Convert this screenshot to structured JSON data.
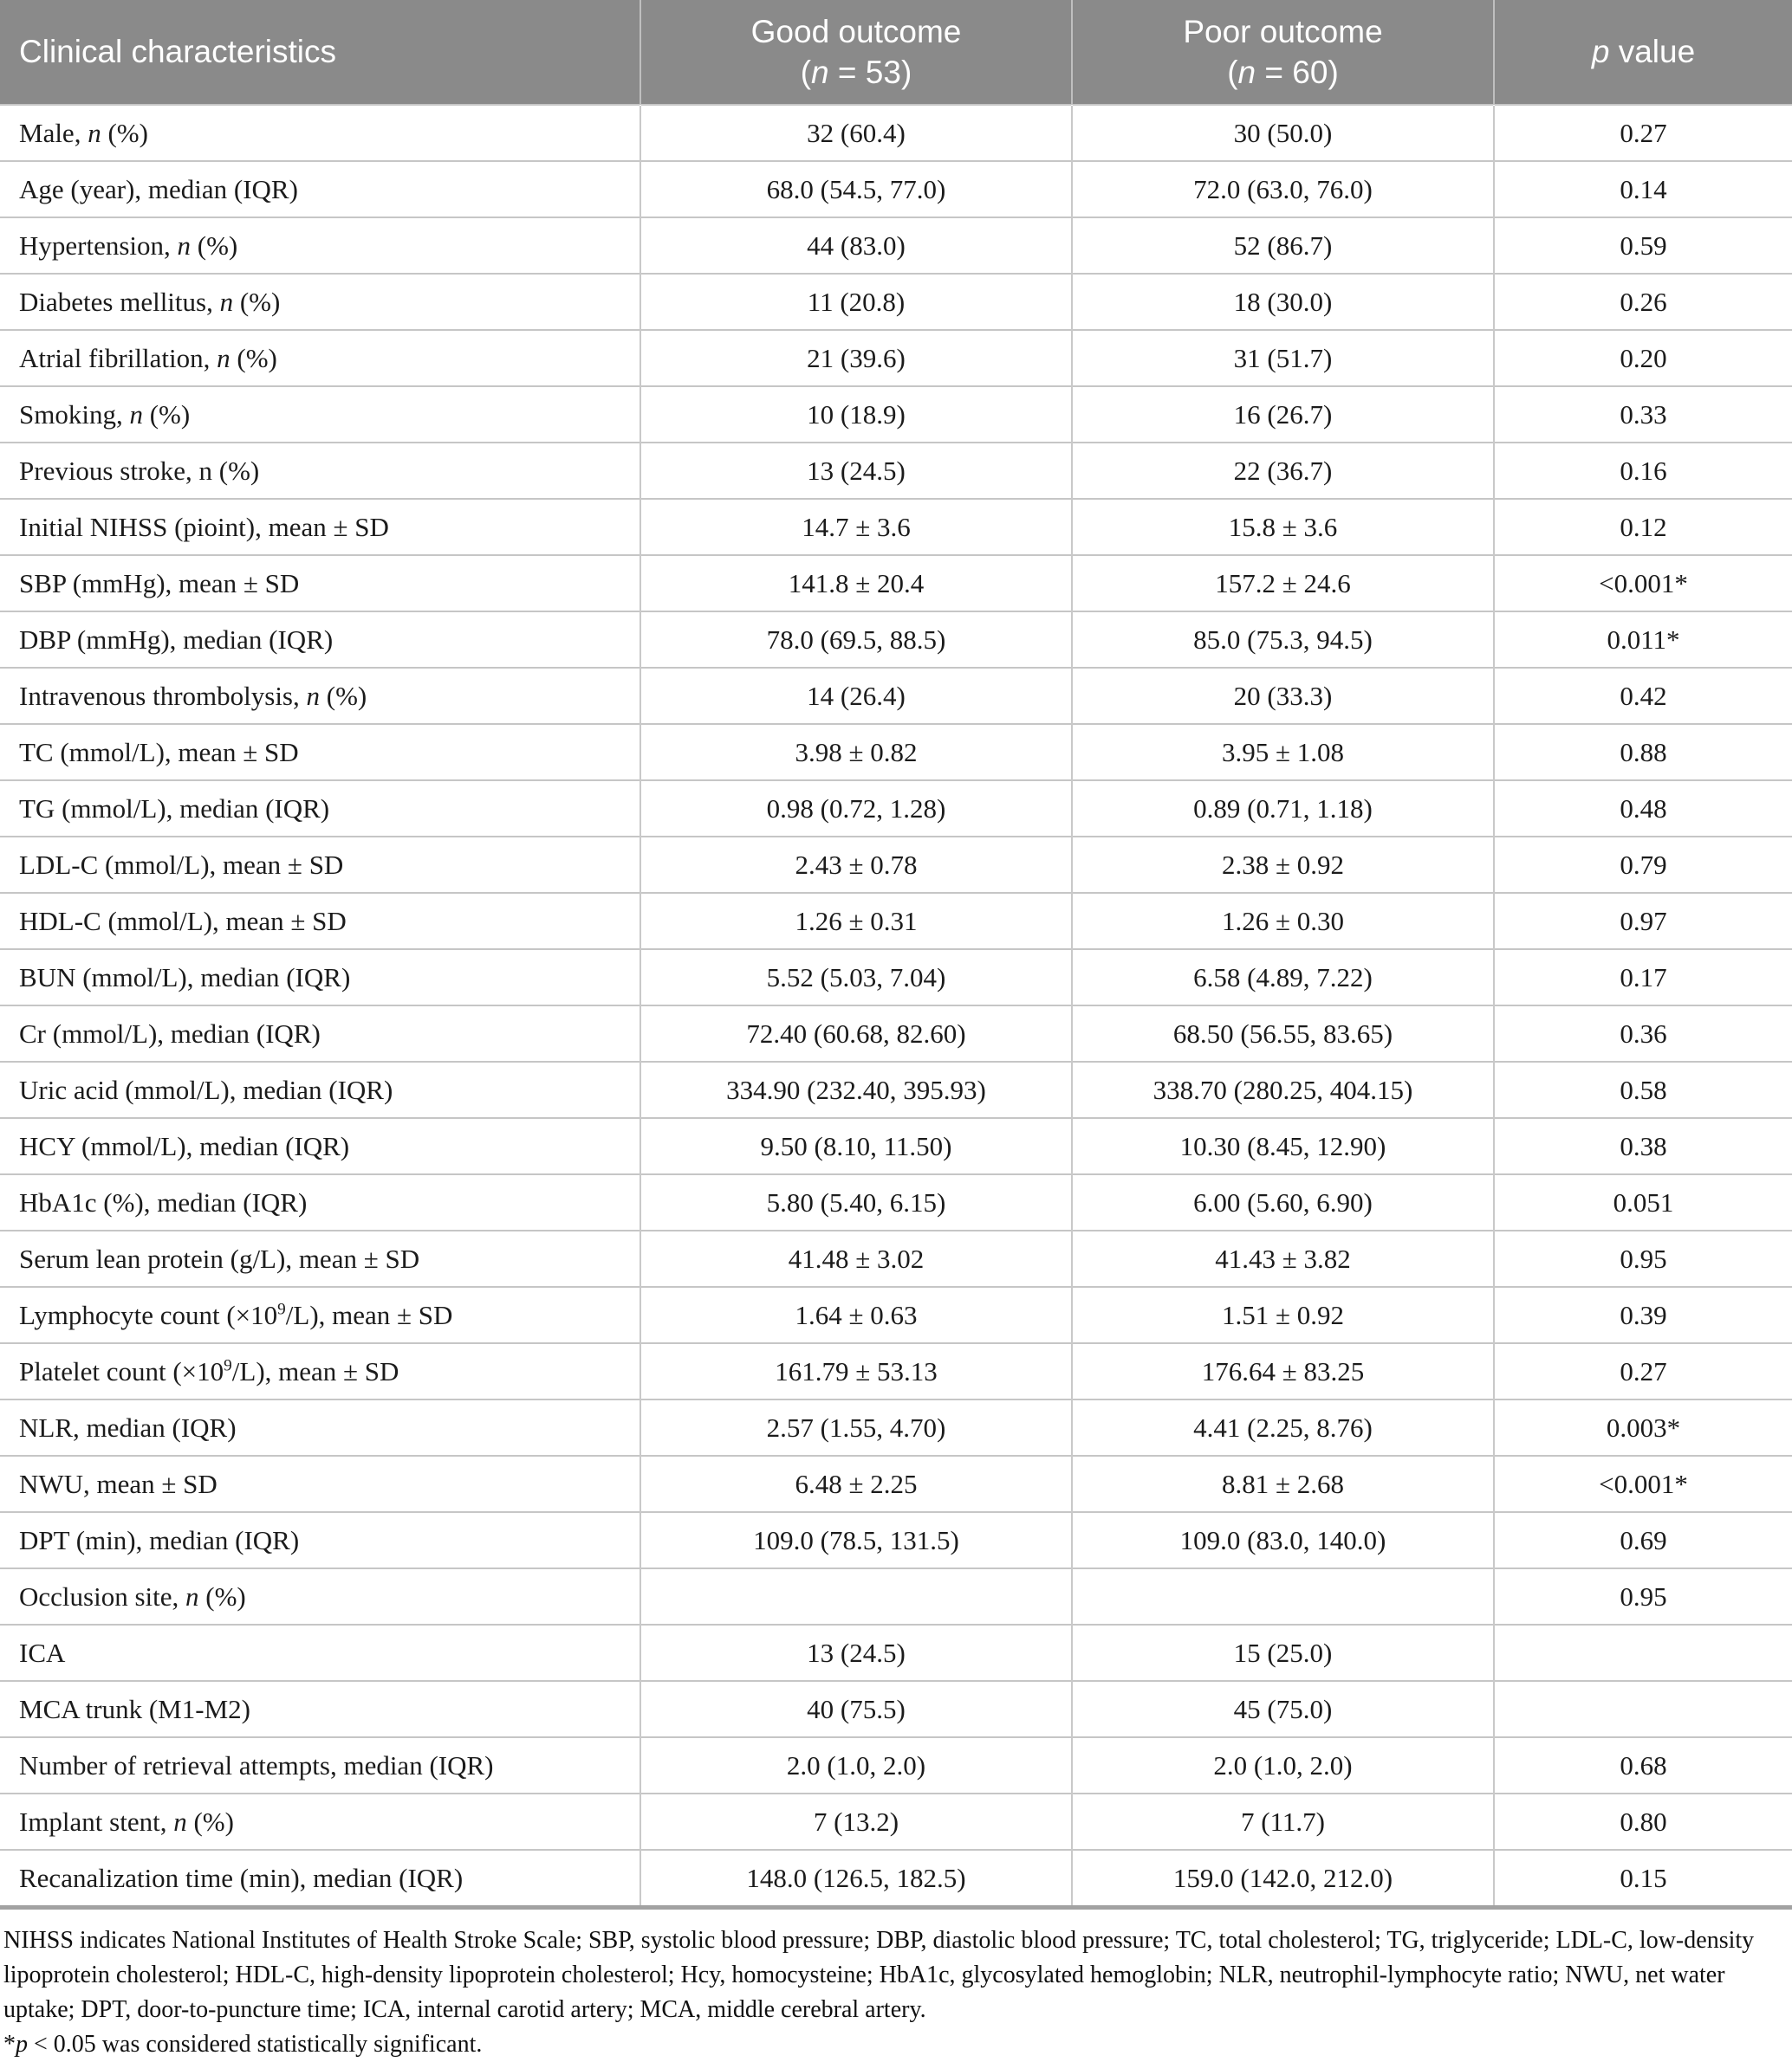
{
  "colors": {
    "header_bg": "#8a8a8a",
    "header_text": "#ffffff",
    "body_text": "#1b1b1b",
    "row_border": "#c9c9c9",
    "bottom_border": "#a2a2a2"
  },
  "header": {
    "cells": [
      {
        "id": "characteristics",
        "lines": [
          [
            "Clinical characteristics"
          ]
        ]
      },
      {
        "id": "good-outcome",
        "lines": [
          [
            "Good outcome"
          ],
          [
            "(",
            {
              "i": "n"
            },
            " = 53)"
          ]
        ]
      },
      {
        "id": "poor-outcome",
        "lines": [
          [
            "Poor outcome"
          ],
          [
            "(",
            {
              "i": "n"
            },
            " = 60)"
          ]
        ]
      },
      {
        "id": "p-value",
        "lines": [
          [
            {
              "i": "p"
            },
            " value"
          ]
        ]
      }
    ]
  },
  "rows": [
    {
      "label": [
        "Male, ",
        {
          "i": "n"
        },
        " (%)"
      ],
      "good": "32 (60.4)",
      "poor": "30 (50.0)",
      "p": "0.27"
    },
    {
      "label": [
        "Age (year), median (IQR)"
      ],
      "good": "68.0 (54.5, 77.0)",
      "poor": "72.0 (63.0, 76.0)",
      "p": "0.14"
    },
    {
      "label": [
        "Hypertension, ",
        {
          "i": "n"
        },
        " (%)"
      ],
      "good": "44 (83.0)",
      "poor": "52 (86.7)",
      "p": "0.59"
    },
    {
      "label": [
        "Diabetes mellitus, ",
        {
          "i": "n"
        },
        " (%)"
      ],
      "good": "11 (20.8)",
      "poor": "18 (30.0)",
      "p": "0.26"
    },
    {
      "label": [
        "Atrial fibrillation, ",
        {
          "i": "n"
        },
        " (%)"
      ],
      "good": "21 (39.6)",
      "poor": "31 (51.7)",
      "p": "0.20"
    },
    {
      "label": [
        "Smoking, ",
        {
          "i": "n"
        },
        " (%)"
      ],
      "good": "10 (18.9)",
      "poor": "16 (26.7)",
      "p": "0.33"
    },
    {
      "label": [
        "Previous stroke, n (%)"
      ],
      "good": "13 (24.5)",
      "poor": "22 (36.7)",
      "p": "0.16"
    },
    {
      "label": [
        "Initial NIHSS (pioint), mean ± SD"
      ],
      "good": "14.7 ± 3.6",
      "poor": "15.8 ± 3.6",
      "p": "0.12"
    },
    {
      "label": [
        "SBP (mmHg), mean ± SD"
      ],
      "good": "141.8 ± 20.4",
      "poor": "157.2 ± 24.6",
      "p": "<0.001*"
    },
    {
      "label": [
        "DBP (mmHg), median (IQR)"
      ],
      "good": "78.0 (69.5, 88.5)",
      "poor": "85.0 (75.3, 94.5)",
      "p": "0.011*"
    },
    {
      "label": [
        "Intravenous thrombolysis, ",
        {
          "i": "n"
        },
        " (%)"
      ],
      "good": "14 (26.4)",
      "poor": "20 (33.3)",
      "p": "0.42"
    },
    {
      "label": [
        "TC (mmol/L), mean ± SD"
      ],
      "good": "3.98 ± 0.82",
      "poor": "3.95 ± 1.08",
      "p": "0.88"
    },
    {
      "label": [
        "TG (mmol/L), median (IQR)"
      ],
      "good": "0.98 (0.72, 1.28)",
      "poor": "0.89 (0.71, 1.18)",
      "p": "0.48"
    },
    {
      "label": [
        "LDL-C (mmol/L), mean ± SD"
      ],
      "good": "2.43 ± 0.78",
      "poor": "2.38 ± 0.92",
      "p": "0.79"
    },
    {
      "label": [
        "HDL-C (mmol/L), mean ± SD"
      ],
      "good": "1.26 ± 0.31",
      "poor": "1.26 ± 0.30",
      "p": "0.97"
    },
    {
      "label": [
        "BUN (mmol/L), median (IQR)"
      ],
      "good": "5.52 (5.03, 7.04)",
      "poor": "6.58 (4.89, 7.22)",
      "p": "0.17"
    },
    {
      "label": [
        "Cr (mmol/L), median (IQR)"
      ],
      "good": "72.40 (60.68, 82.60)",
      "poor": "68.50 (56.55, 83.65)",
      "p": "0.36"
    },
    {
      "label": [
        "Uric acid (mmol/L), median (IQR)"
      ],
      "good": "334.90 (232.40, 395.93)",
      "poor": "338.70 (280.25, 404.15)",
      "p": "0.58"
    },
    {
      "label": [
        "HCY (mmol/L), median (IQR)"
      ],
      "good": "9.50 (8.10, 11.50)",
      "poor": "10.30 (8.45, 12.90)",
      "p": "0.38"
    },
    {
      "label": [
        "HbA1c (%), median (IQR)"
      ],
      "good": "5.80 (5.40, 6.15)",
      "poor": "6.00 (5.60, 6.90)",
      "p": "0.051"
    },
    {
      "label": [
        "Serum lean protein (g/L), mean ± SD"
      ],
      "good": "41.48 ± 3.02",
      "poor": "41.43 ± 3.82",
      "p": "0.95"
    },
    {
      "label": [
        "Lymphocyte count (×10",
        {
          "sup": "9"
        },
        "/L), mean ± SD"
      ],
      "good": "1.64 ± 0.63",
      "poor": "1.51 ± 0.92",
      "p": "0.39"
    },
    {
      "label": [
        "Platelet count (×10",
        {
          "sup": "9"
        },
        "/L), mean ± SD"
      ],
      "good": "161.79 ± 53.13",
      "poor": "176.64 ± 83.25",
      "p": "0.27"
    },
    {
      "label": [
        "NLR, median (IQR)"
      ],
      "good": "2.57 (1.55, 4.70)",
      "poor": "4.41 (2.25, 8.76)",
      "p": "0.003*"
    },
    {
      "label": [
        "NWU, mean ± SD"
      ],
      "good": "6.48 ± 2.25",
      "poor": "8.81 ± 2.68",
      "p": "<0.001*"
    },
    {
      "label": [
        "DPT (min), median (IQR)"
      ],
      "good": "109.0 (78.5, 131.5)",
      "poor": "109.0 (83.0, 140.0)",
      "p": "0.69"
    },
    {
      "label": [
        "Occlusion site, ",
        {
          "i": "n"
        },
        " (%)"
      ],
      "good": "",
      "poor": "",
      "p": "0.95"
    },
    {
      "label": [
        "ICA"
      ],
      "good": "13 (24.5)",
      "poor": "15 (25.0)",
      "p": ""
    },
    {
      "label": [
        "MCA trunk (M1-M2)"
      ],
      "good": "40 (75.5)",
      "poor": "45 (75.0)",
      "p": ""
    },
    {
      "label": [
        "Number of retrieval attempts, median (IQR)"
      ],
      "good": "2.0 (1.0, 2.0)",
      "poor": "2.0 (1.0, 2.0)",
      "p": "0.68"
    },
    {
      "label": [
        "Implant stent, ",
        {
          "i": "n"
        },
        " (%)"
      ],
      "good": "7 (13.2)",
      "poor": "7 (11.7)",
      "p": "0.80"
    },
    {
      "label": [
        "Recanalization time (min), median (IQR)"
      ],
      "good": "148.0 (126.5, 182.5)",
      "poor": "159.0 (142.0, 212.0)",
      "p": "0.15"
    }
  ],
  "footnotes": [
    {
      "segments": [
        "NIHSS indicates National Institutes of Health Stroke Scale; SBP, systolic blood pressure; DBP, diastolic blood pressure; TC, total cholesterol; TG, triglyceride; LDL-C, low-density lipoprotein cholesterol; HDL-C, high-density lipoprotein cholesterol; Hcy, homocysteine; HbA1c, glycosylated hemoglobin; NLR, neutrophil-lymphocyte ratio; NWU, net water uptake; DPT, door-to-puncture time; ICA, internal carotid artery; MCA, middle cerebral artery."
      ]
    },
    {
      "segments": [
        "*",
        {
          "i": "p"
        },
        " < 0.05 was considered statistically significant."
      ]
    }
  ]
}
